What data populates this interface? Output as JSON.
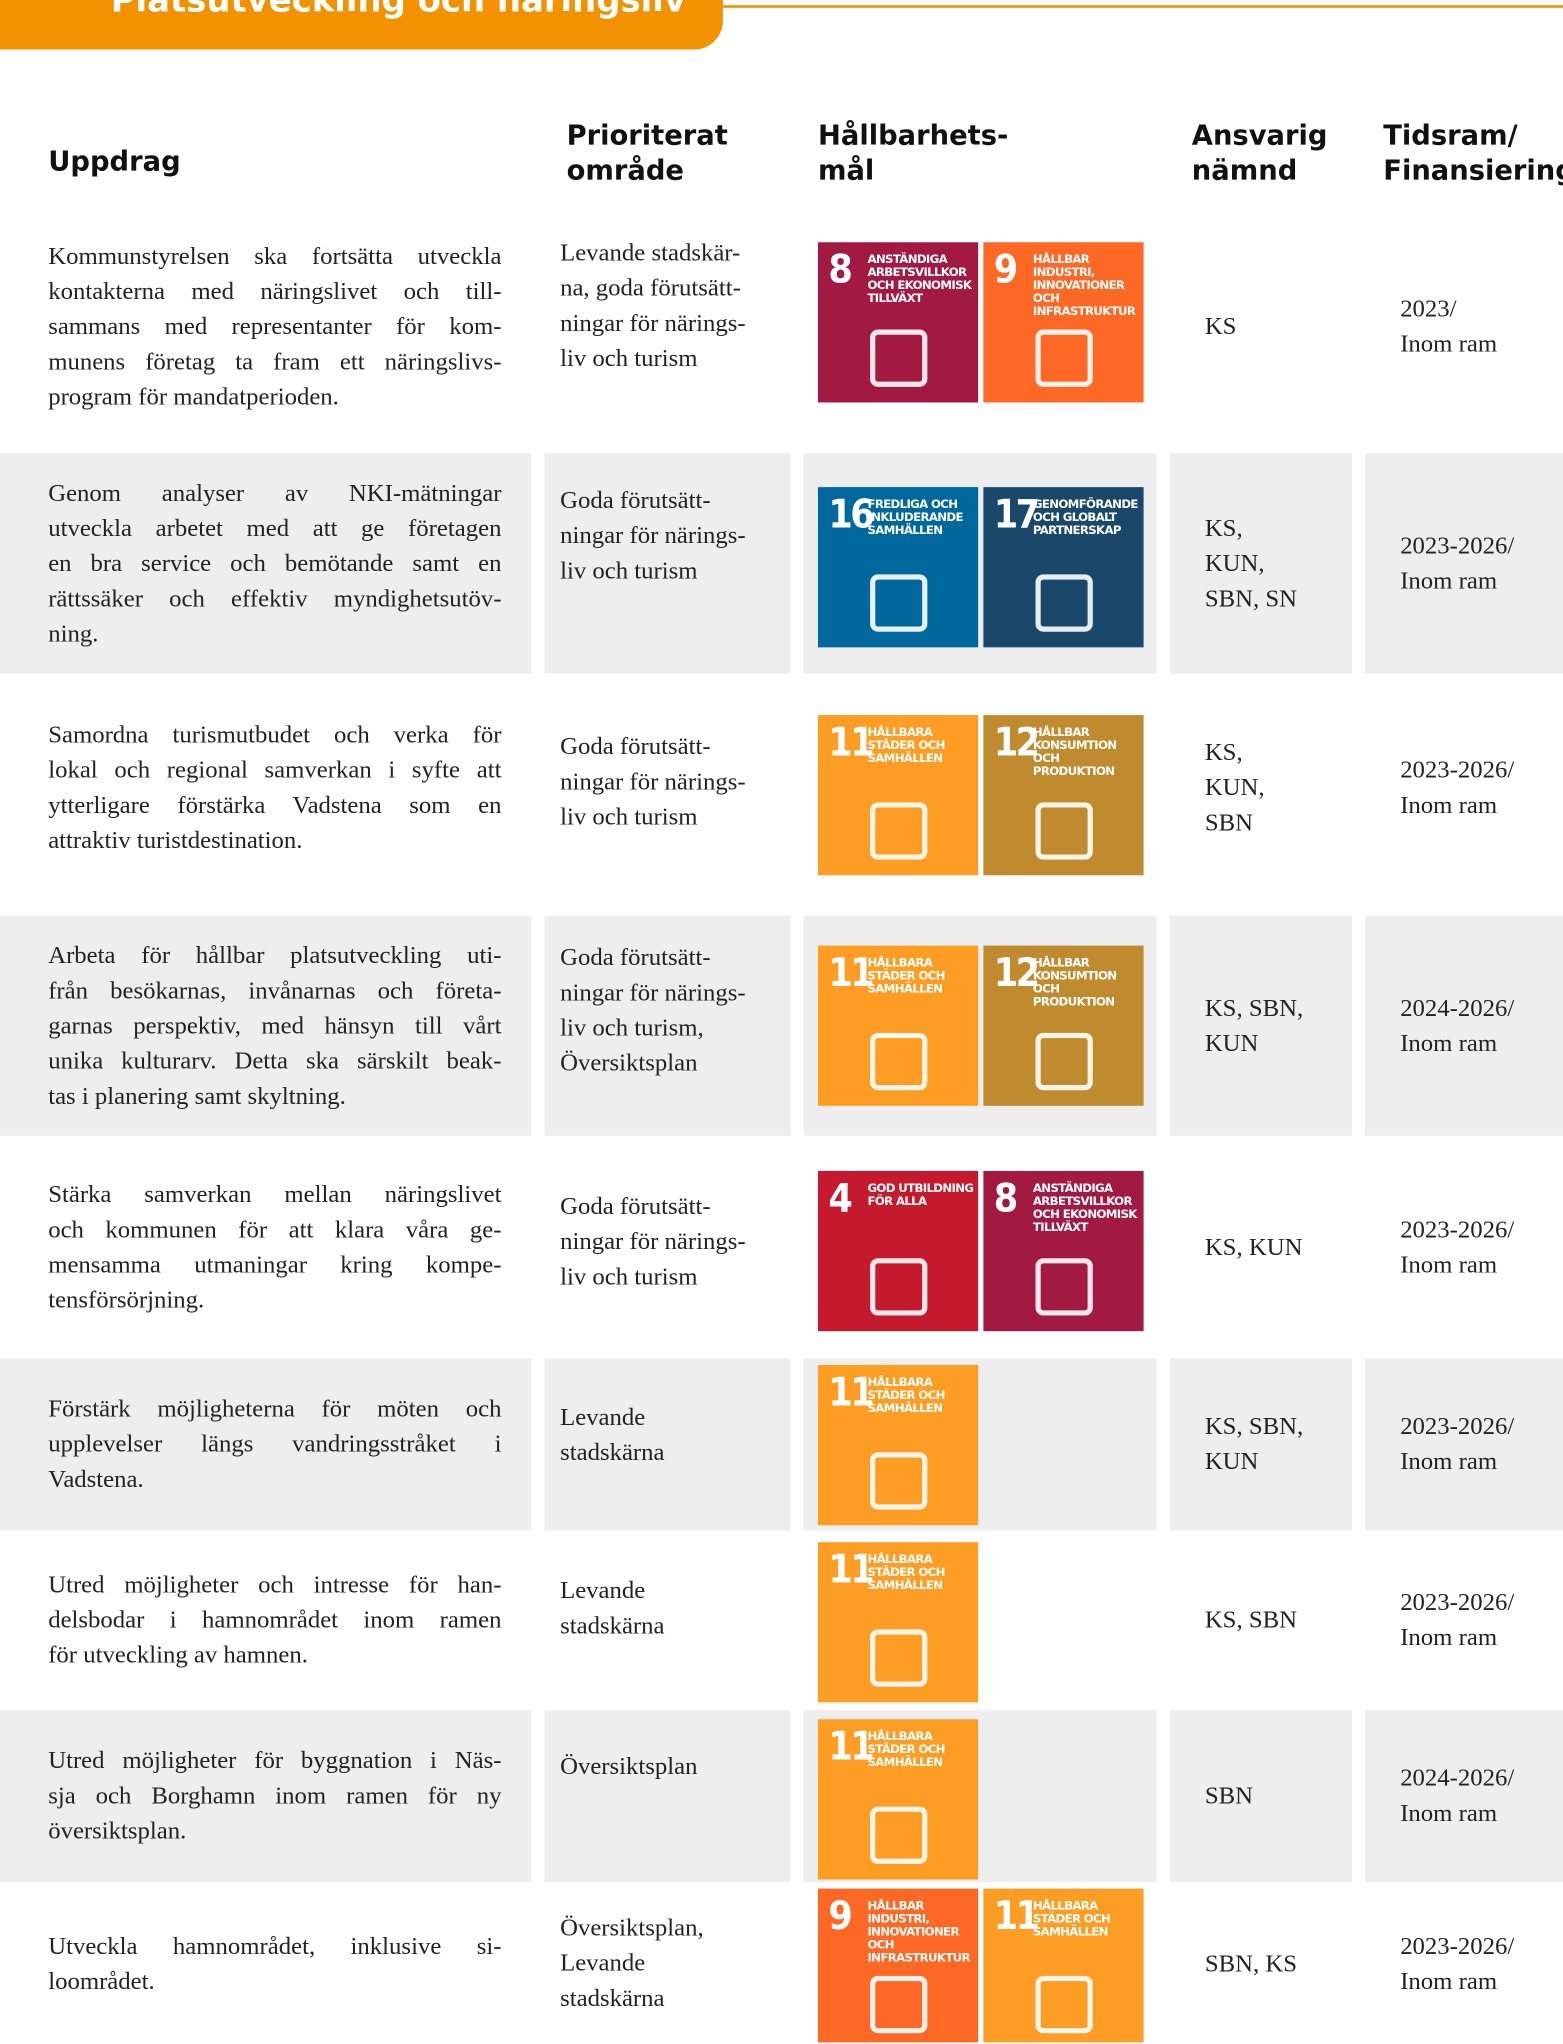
{
  "header": {
    "tab_title": "Platsutveckling och näringsliv"
  },
  "table": {
    "columns": [
      [
        "Uppdrag"
      ],
      [
        "Prioriterat",
        "område"
      ],
      [
        "Hållbarhets-",
        "mål"
      ],
      [
        "Ansvarig",
        "nämnd"
      ],
      [
        "Tidsram/",
        "Finansiering"
      ]
    ],
    "rows": [
      {
        "task": [
          "Kommunstyrelsen ska fortsätta utveckla",
          "kontakterna med näringslivet och till-",
          "sammans med representanter för kom-",
          "munens företag ta fram ett näringslivs-",
          "program för mandatperioden."
        ],
        "area": [
          "Levande stadskär-",
          "na, goda förutsätt-",
          "ningar för närings-",
          "liv och turism"
        ],
        "goals": [
          {
            "number": "8",
            "label": "ANSTÄNDIGA ARBETSVILLKOR OCH EKONOMISK TILLVÄXT"
          },
          {
            "number": "9",
            "label": "HÅLLBAR INDUSTRI, INNOVATIONER OCH INFRASTRUKTUR"
          }
        ],
        "board": [
          "KS"
        ],
        "timeframe": [
          "2023/",
          "Inom ram"
        ]
      },
      {
        "task": [
          "Genom analyser av NKI-mätningar",
          "utveckla arbetet med att ge företagen",
          "en bra service och bemötande samt en",
          "rättssäker och effektiv myndighetsutöv-",
          "ning."
        ],
        "area": [
          "Goda förutsätt-",
          "ningar för närings-",
          "liv och turism"
        ],
        "goals": [
          {
            "number": "16",
            "label": "FREDLIGA OCH INKLUDERANDE SAMHÄLLEN"
          },
          {
            "number": "17",
            "label": "GENOMFÖRANDE OCH GLOBALT PARTNERSKAP"
          }
        ],
        "board": [
          "KS,",
          "KUN,",
          "SBN, SN"
        ],
        "timeframe": [
          "2023-2026/",
          "Inom ram"
        ]
      },
      {
        "task": [
          "Samordna turismutbudet och verka för",
          "lokal och regional samverkan i syfte att",
          "ytterligare förstärka Vadstena som en",
          "attraktiv turistdestination."
        ],
        "area": [
          "Goda förutsätt-",
          "ningar för närings-",
          "liv och turism"
        ],
        "goals": [
          {
            "number": "11",
            "label": "HÅLLBARA STÄDER OCH SAMHÄLLEN"
          },
          {
            "number": "12",
            "label": "HÅLLBAR KONSUMTION OCH PRODUKTION"
          }
        ],
        "board": [
          "KS,",
          "KUN,",
          "SBN"
        ],
        "timeframe": [
          "2023-2026/",
          "Inom ram"
        ]
      },
      {
        "task": [
          "Arbeta för hållbar platsutveckling uti-",
          "från besökarnas, invånarnas och företa-",
          "garnas perspektiv, med hänsyn till vårt",
          "unika kulturarv. Detta ska särskilt beak-",
          "tas i planering samt skyltning."
        ],
        "area": [
          "Goda förutsätt-",
          "ningar för närings-",
          "liv och turism,",
          "Översiktsplan"
        ],
        "goals": [
          {
            "number": "11",
            "label": "HÅLLBARA STÄDER OCH SAMHÄLLEN"
          },
          {
            "number": "12",
            "label": "HÅLLBAR KONSUMTION OCH PRODUKTION"
          }
        ],
        "board": [
          "KS, SBN,",
          "KUN"
        ],
        "timeframe": [
          "2024-2026/",
          "Inom ram"
        ]
      },
      {
        "task": [
          "Stärka samverkan mellan näringslivet",
          "och kommunen för att klara våra ge-",
          "mensamma utmaningar kring kompe-",
          "tensförsörjning."
        ],
        "area": [
          "Goda förutsätt-",
          "ningar för närings-",
          "liv och turism"
        ],
        "goals": [
          {
            "number": "4",
            "label": "GOD UTBILDNING FÖR ALLA"
          },
          {
            "number": "8",
            "label": "ANSTÄNDIGA ARBETSVILLKOR OCH EKONOMISK TILLVÄXT"
          }
        ],
        "board": [
          "KS, KUN"
        ],
        "timeframe": [
          "2023-2026/",
          "Inom ram"
        ]
      },
      {
        "task": [
          "Förstärk möjligheterna för möten och",
          "upplevelser längs vandringsstråket i",
          "Vadstena."
        ],
        "area": [
          "Levande",
          "stadskärna"
        ],
        "goals": [
          {
            "number": "11",
            "label": "HÅLLBARA STÄDER OCH SAMHÄLLEN"
          }
        ],
        "board": [
          "KS, SBN,",
          "KUN"
        ],
        "timeframe": [
          "2023-2026/",
          "Inom ram"
        ]
      },
      {
        "task": [
          "Utred möjligheter och intresse för han-",
          "delsbodar i hamnområdet inom ramen",
          "för utveckling av hamnen."
        ],
        "area": [
          "Levande",
          "stadskärna"
        ],
        "goals": [
          {
            "number": "11",
            "label": "HÅLLBARA STÄDER OCH SAMHÄLLEN"
          }
        ],
        "board": [
          "KS, SBN"
        ],
        "timeframe": [
          "2023-2026/",
          "Inom ram"
        ]
      },
      {
        "task": [
          "Utred möjligheter för byggnation i Näs-",
          "sja och Borghamn inom ramen för ny",
          "översiktsplan."
        ],
        "area": [
          "Översiktsplan"
        ],
        "goals": [
          {
            "number": "11",
            "label": "HÅLLBARA STÄDER OCH SAMHÄLLEN"
          }
        ],
        "board": [
          "SBN"
        ],
        "timeframe": [
          "2024-2026/",
          "Inom ram"
        ]
      },
      {
        "task": [
          "Utveckla hamnområdet, inklusive si-",
          "loområdet."
        ],
        "area": [
          "Översiktsplan,",
          "Levande",
          "stadskärna"
        ],
        "goals": [
          {
            "number": "9",
            "label": "HÅLLBAR INDUSTRI, INNOVATIONER OCH INFRASTRUKTUR"
          },
          {
            "number": "11",
            "label": "HÅLLBARA STÄDER OCH SAMHÄLLEN"
          }
        ],
        "board": [
          "SBN, KS"
        ],
        "timeframe": [
          "2023-2026/",
          "Inom ram"
        ]
      }
    ]
  }
}
